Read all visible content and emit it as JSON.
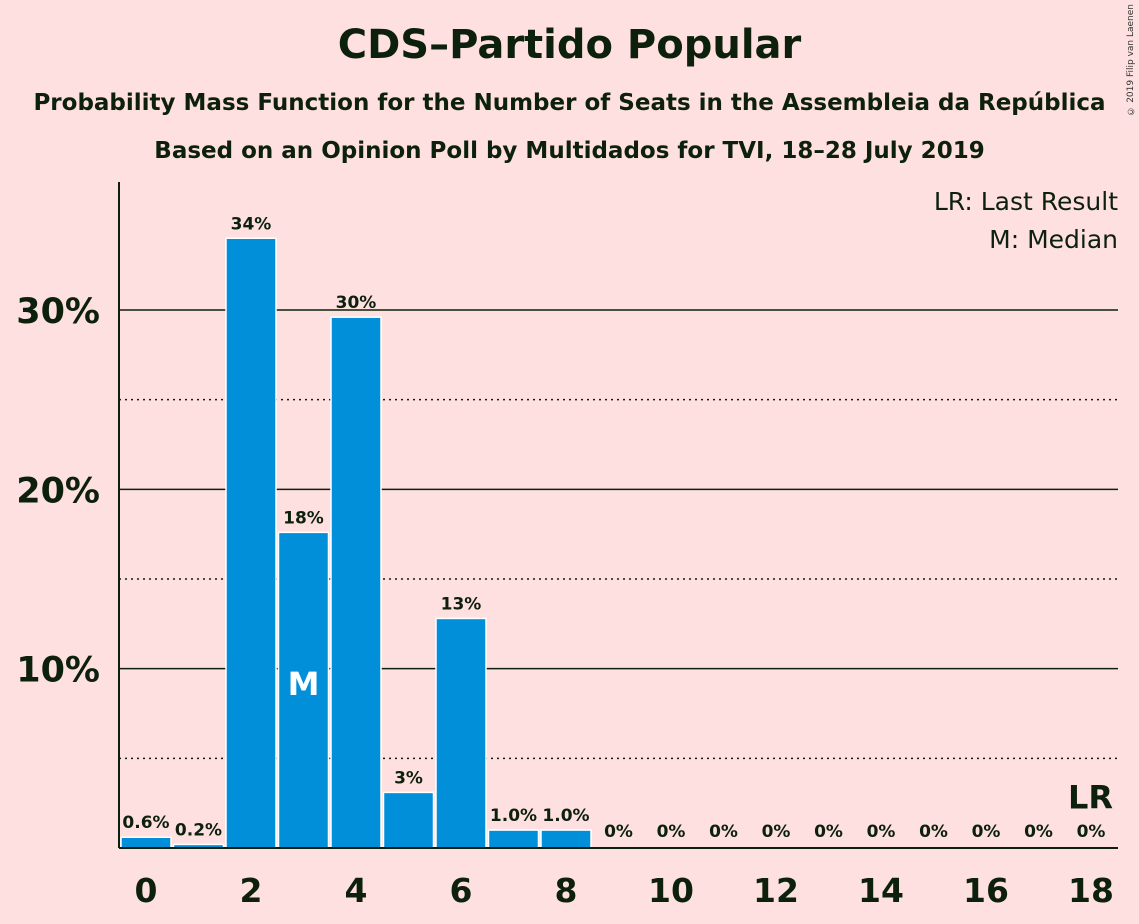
{
  "colors": {
    "background": "#ffe0e0",
    "bar": "#008fd8",
    "text": "#0c200c"
  },
  "copyright": "© 2019 Filip van Laenen",
  "chart_data": {
    "type": "bar",
    "title": "CDS–Partido Popular",
    "subtitle": "Probability Mass Function for the Number of Seats in the Assembleia da República",
    "subtitle2": "Based on an Opinion Poll by Multidados for TVI, 18–28 July 2019",
    "x": [
      0,
      1,
      2,
      3,
      4,
      5,
      6,
      7,
      8,
      9,
      10,
      11,
      12,
      13,
      14,
      15,
      16,
      17,
      18
    ],
    "values": [
      0.6,
      0.2,
      34,
      17.6,
      29.6,
      3.1,
      12.8,
      1.0,
      1.0,
      0,
      0,
      0,
      0,
      0,
      0,
      0,
      0,
      0,
      0
    ],
    "data_labels": [
      "0.6%",
      "0.2%",
      "34%",
      "18%",
      "30%",
      "3%",
      "13%",
      "1.0%",
      "1.0%",
      "0%",
      "0%",
      "0%",
      "0%",
      "0%",
      "0%",
      "0%",
      "0%",
      "0%",
      "0%"
    ],
    "x_tick_labels": [
      "0",
      "2",
      "4",
      "6",
      "8",
      "10",
      "12",
      "14",
      "16",
      "18"
    ],
    "y_tick_labels": [
      "10%",
      "20%",
      "30%"
    ],
    "ylim": [
      0,
      37
    ],
    "grid": "solid lines at 10% steps, dotted at 5% intermediates",
    "median_seat": 3,
    "median_marker": "M",
    "last_result_seat": 18,
    "last_result_marker": "LR",
    "legend": [
      "LR: Last Result",
      "M: Median"
    ],
    "legend_position": "top-right"
  }
}
